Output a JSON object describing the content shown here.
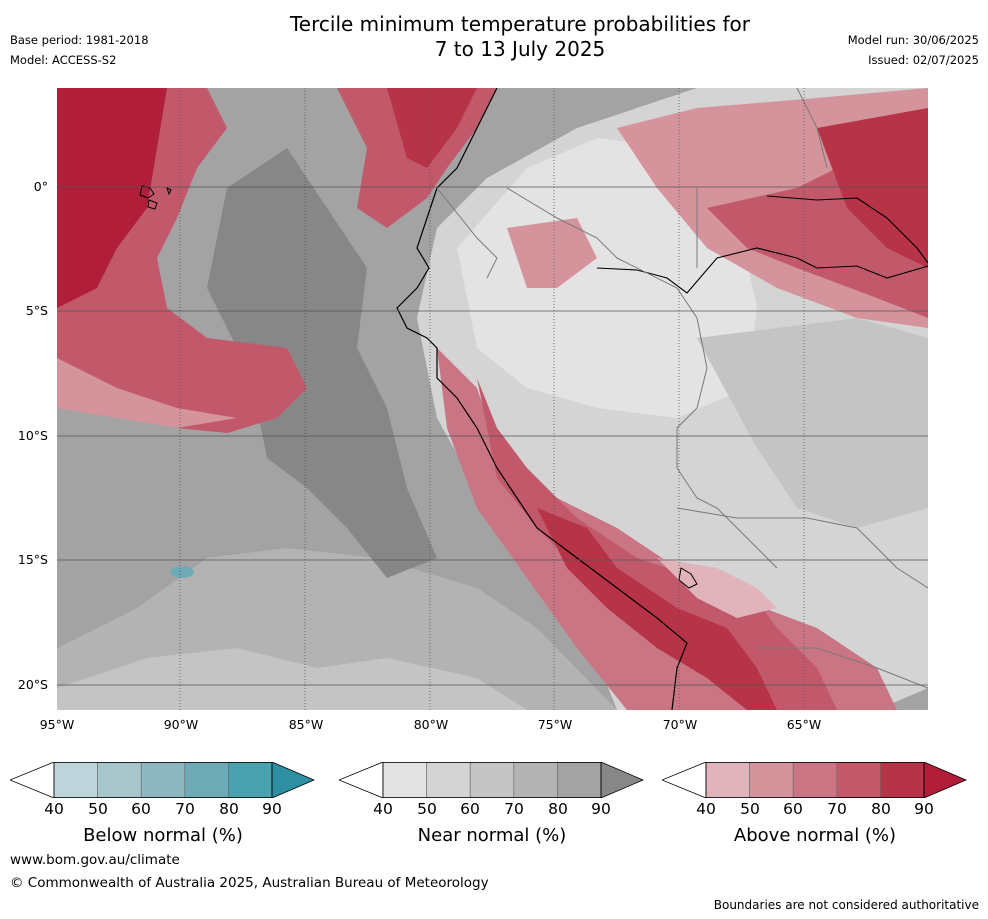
{
  "header": {
    "title_line1": "Tercile minimum temperature probabilities for",
    "title_line2": "7 to 13 July 2025",
    "base_period": "Base period: 1981-2018",
    "model": "Model: ACCESS-S2",
    "model_run": "Model run: 30/06/2025",
    "issued": "Issued: 02/07/2025"
  },
  "map": {
    "region": "South America (west)",
    "lat_ticks": [
      "0°",
      "5°S",
      "10°S",
      "15°S",
      "20°S"
    ],
    "lon_ticks": [
      "95°W",
      "90°W",
      "85°W",
      "80°W",
      "75°W",
      "70°W",
      "65°W"
    ]
  },
  "legends": [
    {
      "title": "Below normal (%)",
      "ticks": [
        "40",
        "50",
        "60",
        "70",
        "80",
        "90"
      ],
      "colors": [
        "#bed4da",
        "#a6c6cc",
        "#8cb7c0",
        "#6fabb7",
        "#4aa1b0",
        "#2f8fa2"
      ]
    },
    {
      "title": "Near normal (%)",
      "ticks": [
        "40",
        "50",
        "60",
        "70",
        "80",
        "90"
      ],
      "colors": [
        "#e3e3e3",
        "#d4d4d4",
        "#c4c4c4",
        "#b3b3b3",
        "#a3a3a3",
        "#878787"
      ]
    },
    {
      "title": "Above normal (%)",
      "ticks": [
        "40",
        "50",
        "60",
        "70",
        "80",
        "90"
      ],
      "colors": [
        "#e0b4ba",
        "#d5939c",
        "#ca7583",
        "#c1596b",
        "#b63348",
        "#b01e3a"
      ]
    }
  ],
  "footer": {
    "website": "www.bom.gov.au/climate",
    "copyright": "© Commonwealth of Australia 2025, Australian Bureau of Meteorology",
    "disclaimer": "Boundaries are not considered authoritative"
  }
}
